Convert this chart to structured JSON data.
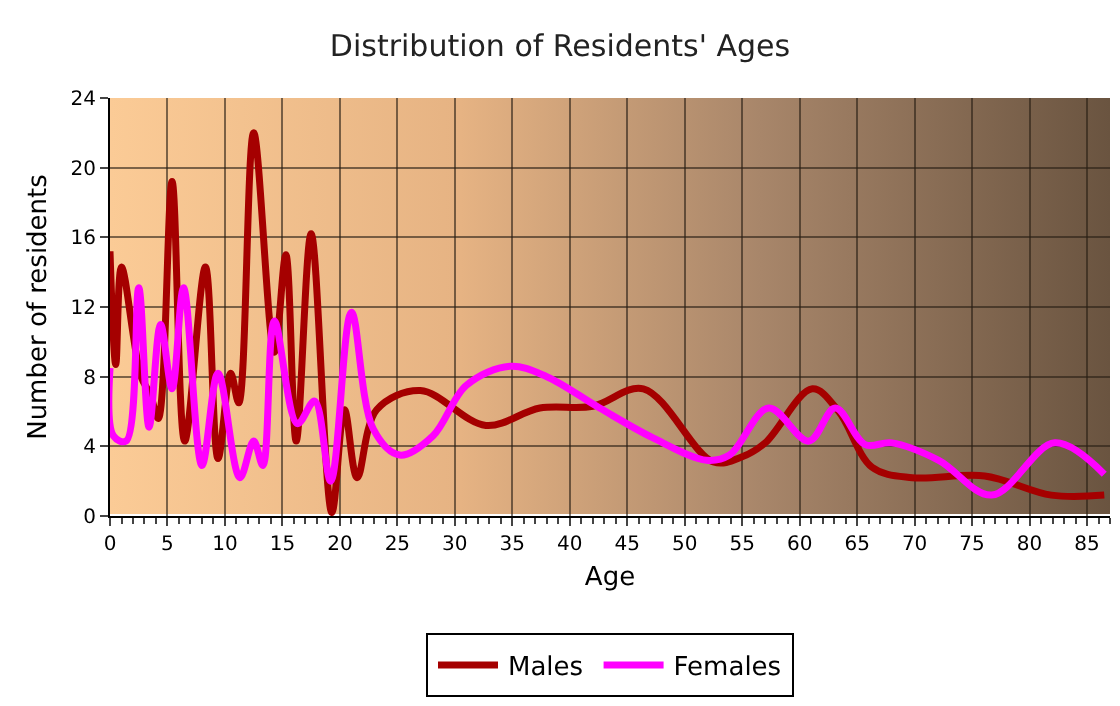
{
  "chart_data": {
    "type": "line",
    "title": "Distribution of Residents' Ages",
    "xlabel": "Age",
    "ylabel": "Number of residents",
    "xlim": [
      0,
      87
    ],
    "xticks": [
      0,
      5,
      10,
      15,
      20,
      25,
      30,
      35,
      40,
      45,
      50,
      55,
      60,
      65,
      70,
      75,
      80,
      85
    ],
    "ylim": [
      0,
      24
    ],
    "yticks": [
      0,
      4,
      8,
      12,
      16,
      20,
      24
    ],
    "grid": true,
    "legend": "bottom",
    "marker": "none",
    "line_style": "solid",
    "series": [
      {
        "name": "Males",
        "color": "#a50000",
        "x": [
          0,
          0.5,
          1,
          2.7,
          3.5,
          4.2,
          5.4,
          6.5,
          8.3,
          9.4,
          10.5,
          11.2,
          12.5,
          14.3,
          15.3,
          16.2,
          17.5,
          19.3,
          20.4,
          21.5,
          23.2,
          27,
          32.7,
          37.4,
          42,
          46.4,
          52.5,
          55,
          57,
          61.1,
          63.4,
          66.3,
          69.8,
          76.1,
          81.9,
          86.5
        ],
        "values": [
          15.2,
          8.7,
          14.3,
          8,
          7,
          5.6,
          19.2,
          4.3,
          14.3,
          3.3,
          8.2,
          6.5,
          22,
          9.4,
          15,
          4.3,
          16.2,
          0.2,
          6.1,
          2.2,
          6.1,
          7.2,
          5.2,
          6.2,
          6.3,
          7.3,
          3.1,
          3.4,
          4.2,
          7.3,
          6,
          2.8,
          2.2,
          2.3,
          1.2,
          1.2
        ]
      },
      {
        "name": "Females",
        "color": "#ff00ff",
        "x": [
          0,
          0.3,
          1.4,
          2.5,
          3.4,
          4.4,
          5.4,
          6.4,
          8,
          9.4,
          11.3,
          12.5,
          13.3,
          14.3,
          16.3,
          17.8,
          19.2,
          21,
          22.9,
          25.2,
          28.1,
          31,
          34.8,
          38,
          42.6,
          47.2,
          51.9,
          53.9,
          57.3,
          60.8,
          63.1,
          65.7,
          68,
          72.1,
          76.7,
          82.2,
          86.5
        ],
        "values": [
          8.5,
          4.6,
          4.3,
          13.1,
          5.1,
          11,
          7.3,
          13.1,
          2.9,
          8.2,
          2.2,
          4.3,
          2.9,
          11.2,
          5.3,
          6.6,
          2,
          11.7,
          5,
          3.5,
          4.6,
          7.5,
          8.6,
          8,
          6.2,
          4.5,
          3.2,
          3.5,
          6.2,
          4.3,
          6.2,
          4.1,
          4.2,
          3.2,
          1.2,
          4.2,
          2.4
        ]
      }
    ]
  }
}
